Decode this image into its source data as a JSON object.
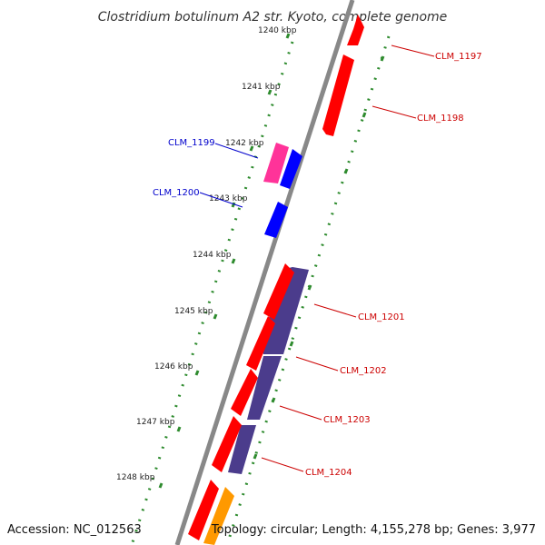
{
  "title": "Clostridium botulinum A2 str. Kyoto, complete genome",
  "footer": {
    "accession": "Accession: NC_012563",
    "summary": "Topology: circular; Length: 4,155,278 bp; Genes: 3,977"
  },
  "colors": {
    "backbone": "#888888",
    "tick_dots": "#2e8b2e",
    "tick_major": "#2e8b2e",
    "label_reverse": "#0000cc",
    "label_forward": "#cc0000",
    "gene_red": "#ff0000",
    "gene_pink": "#ff3399",
    "gene_blue": "#0000ff",
    "gene_purple": "#4b3c8c",
    "gene_orange": "#ff9900"
  },
  "ticks": [
    "1240 kbp",
    "1241 kbp",
    "1242 kbp",
    "1243 kbp",
    "1244 kbp",
    "1245 kbp",
    "1246 kbp",
    "1247 kbp",
    "1248 kbp"
  ],
  "gene_labels": [
    {
      "name": "CLM_1197",
      "strand": "forward"
    },
    {
      "name": "CLM_1198",
      "strand": "forward"
    },
    {
      "name": "CLM_1199",
      "strand": "reverse"
    },
    {
      "name": "CLM_1200",
      "strand": "reverse"
    },
    {
      "name": "CLM_1201",
      "strand": "forward"
    },
    {
      "name": "CLM_1202",
      "strand": "forward"
    },
    {
      "name": "CLM_1203",
      "strand": "forward"
    },
    {
      "name": "CLM_1204",
      "strand": "forward"
    }
  ]
}
